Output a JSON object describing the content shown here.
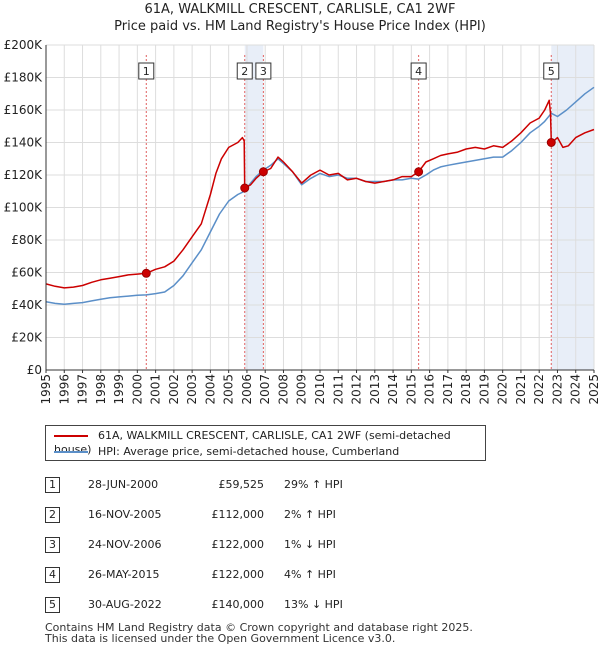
{
  "title_line1": "61A, WALKMILL CRESCENT, CARLISLE, CA1 2WF",
  "title_line2": "Price paid vs. HM Land Registry's House Price Index (HPI)",
  "legend": {
    "property": "61A, WALKMILL CRESCENT, CARLISLE, CA1 2WF (semi-detached house)",
    "hpi": "HPI: Average price, semi-detached house, Cumberland"
  },
  "sales": [
    {
      "num": "1",
      "date": "28-JUN-2000",
      "price": "£59,525",
      "hpi": "29% ↑ HPI"
    },
    {
      "num": "2",
      "date": "16-NOV-2005",
      "price": "£112,000",
      "hpi": "2% ↑ HPI"
    },
    {
      "num": "3",
      "date": "24-NOV-2006",
      "price": "£122,000",
      "hpi": "1% ↓ HPI"
    },
    {
      "num": "4",
      "date": "26-MAY-2015",
      "price": "£122,000",
      "hpi": "4% ↑ HPI"
    },
    {
      "num": "5",
      "date": "30-AUG-2022",
      "price": "£140,000",
      "hpi": "13% ↓ HPI"
    }
  ],
  "footer_line1": "Contains HM Land Registry data © Crown copyright and database right 2025.",
  "footer_line2": "This data is licensed under the Open Government Licence v3.0.",
  "colors": {
    "property": "#cc0000",
    "hpi": "#5b8fc8",
    "shade": "#e8eef8",
    "grid": "#dddddd",
    "vline": "#e06060"
  },
  "chart_data": {
    "type": "line",
    "x_range": [
      1995,
      2025
    ],
    "y_range": [
      0,
      200000
    ],
    "y_ticks": [
      0,
      20000,
      40000,
      60000,
      80000,
      100000,
      120000,
      140000,
      160000,
      180000,
      200000
    ],
    "y_tick_labels": [
      "£0",
      "£20K",
      "£40K",
      "£60K",
      "£80K",
      "£100K",
      "£120K",
      "£140K",
      "£160K",
      "£180K",
      "£200K"
    ],
    "x_ticks": [
      "1995",
      "1996",
      "1997",
      "1998",
      "1999",
      "2000",
      "2001",
      "2002",
      "2003",
      "2004",
      "2005",
      "2006",
      "2007",
      "2008",
      "2009",
      "2010",
      "2011",
      "2012",
      "2013",
      "2014",
      "2015",
      "2016",
      "2017",
      "2018",
      "2019",
      "2020",
      "2021",
      "2022",
      "2023",
      "2024",
      "2025"
    ],
    "sales": [
      {
        "label": "1",
        "x": 2000.49,
        "y": 59525
      },
      {
        "label": "2",
        "x": 2005.88,
        "y": 112000
      },
      {
        "label": "3",
        "x": 2006.9,
        "y": 122000
      },
      {
        "label": "4",
        "x": 2015.4,
        "y": 122000
      },
      {
        "label": "5",
        "x": 2022.66,
        "y": 140000
      }
    ],
    "series": [
      {
        "name": "61A, WALKMILL CRESCENT, CARLISLE, CA1 2WF (semi-detached house)",
        "points": [
          [
            1995,
            53000
          ],
          [
            1995.5,
            51500
          ],
          [
            1996,
            50500
          ],
          [
            1996.5,
            51000
          ],
          [
            1997,
            52000
          ],
          [
            1997.5,
            54000
          ],
          [
            1998,
            55500
          ],
          [
            1998.5,
            56500
          ],
          [
            1999,
            57500
          ],
          [
            1999.5,
            58500
          ],
          [
            2000,
            59000
          ],
          [
            2000.49,
            59525
          ],
          [
            2001,
            62000
          ],
          [
            2001.5,
            63500
          ],
          [
            2002,
            67000
          ],
          [
            2002.5,
            74000
          ],
          [
            2003,
            82000
          ],
          [
            2003.5,
            90000
          ],
          [
            2004,
            108000
          ],
          [
            2004.3,
            121000
          ],
          [
            2004.6,
            130000
          ],
          [
            2005,
            137000
          ],
          [
            2005.5,
            140000
          ],
          [
            2005.75,
            143000
          ],
          [
            2005.85,
            141000
          ],
          [
            2005.88,
            112000
          ],
          [
            2006.2,
            114000
          ],
          [
            2006.5,
            118000
          ],
          [
            2006.9,
            122000
          ],
          [
            2007.3,
            124000
          ],
          [
            2007.7,
            131000
          ],
          [
            2008,
            128000
          ],
          [
            2008.5,
            122000
          ],
          [
            2009,
            115000
          ],
          [
            2009.5,
            120000
          ],
          [
            2010,
            123000
          ],
          [
            2010.5,
            120000
          ],
          [
            2011,
            121000
          ],
          [
            2011.5,
            117000
          ],
          [
            2012,
            118000
          ],
          [
            2012.5,
            116000
          ],
          [
            2013,
            115000
          ],
          [
            2013.5,
            116000
          ],
          [
            2014,
            117000
          ],
          [
            2014.5,
            119000
          ],
          [
            2015,
            119000
          ],
          [
            2015.4,
            122000
          ],
          [
            2015.8,
            128000
          ],
          [
            2016.2,
            130000
          ],
          [
            2016.6,
            132000
          ],
          [
            2017,
            133000
          ],
          [
            2017.5,
            134000
          ],
          [
            2018,
            136000
          ],
          [
            2018.5,
            137000
          ],
          [
            2019,
            136000
          ],
          [
            2019.5,
            138000
          ],
          [
            2020,
            137000
          ],
          [
            2020.5,
            141000
          ],
          [
            2021,
            146000
          ],
          [
            2021.5,
            152000
          ],
          [
            2022,
            155000
          ],
          [
            2022.3,
            160000
          ],
          [
            2022.55,
            166000
          ],
          [
            2022.62,
            158000
          ],
          [
            2022.66,
            140000
          ],
          [
            2022.8,
            141000
          ],
          [
            2023,
            143000
          ],
          [
            2023.3,
            137000
          ],
          [
            2023.6,
            138000
          ],
          [
            2024,
            143000
          ],
          [
            2024.5,
            146000
          ],
          [
            2025,
            148000
          ]
        ]
      },
      {
        "name": "HPI: Average price, semi-detached house, Cumberland",
        "points": [
          [
            1995,
            42000
          ],
          [
            1995.5,
            41000
          ],
          [
            1996,
            40500
          ],
          [
            1996.5,
            41000
          ],
          [
            1997,
            41500
          ],
          [
            1997.5,
            42500
          ],
          [
            1998,
            43500
          ],
          [
            1998.5,
            44500
          ],
          [
            1999,
            45000
          ],
          [
            1999.5,
            45500
          ],
          [
            2000,
            46000
          ],
          [
            2000.49,
            46200
          ],
          [
            2001,
            47000
          ],
          [
            2001.5,
            48000
          ],
          [
            2002,
            52000
          ],
          [
            2002.5,
            58000
          ],
          [
            2003,
            66000
          ],
          [
            2003.5,
            74000
          ],
          [
            2004,
            85000
          ],
          [
            2004.5,
            96000
          ],
          [
            2005,
            104000
          ],
          [
            2005.5,
            108000
          ],
          [
            2005.88,
            110000
          ],
          [
            2006.2,
            115000
          ],
          [
            2006.5,
            119000
          ],
          [
            2006.9,
            123000
          ],
          [
            2007.3,
            126000
          ],
          [
            2007.7,
            130000
          ],
          [
            2008,
            127000
          ],
          [
            2008.5,
            122000
          ],
          [
            2009,
            114000
          ],
          [
            2009.5,
            118000
          ],
          [
            2010,
            121000
          ],
          [
            2010.5,
            119000
          ],
          [
            2011,
            120000
          ],
          [
            2011.5,
            118000
          ],
          [
            2012,
            118000
          ],
          [
            2012.5,
            116000
          ],
          [
            2013,
            116000
          ],
          [
            2013.5,
            116000
          ],
          [
            2014,
            117000
          ],
          [
            2014.5,
            117000
          ],
          [
            2015,
            118000
          ],
          [
            2015.4,
            117500
          ],
          [
            2015.8,
            120000
          ],
          [
            2016.2,
            123000
          ],
          [
            2016.6,
            125000
          ],
          [
            2017,
            126000
          ],
          [
            2017.5,
            127000
          ],
          [
            2018,
            128000
          ],
          [
            2018.5,
            129000
          ],
          [
            2019,
            130000
          ],
          [
            2019.5,
            131000
          ],
          [
            2020,
            131000
          ],
          [
            2020.5,
            135000
          ],
          [
            2021,
            140000
          ],
          [
            2021.5,
            146000
          ],
          [
            2022,
            150000
          ],
          [
            2022.3,
            153000
          ],
          [
            2022.66,
            158000
          ],
          [
            2023,
            156000
          ],
          [
            2023.5,
            160000
          ],
          [
            2024,
            165000
          ],
          [
            2024.5,
            170000
          ],
          [
            2025,
            174000
          ]
        ]
      }
    ]
  }
}
